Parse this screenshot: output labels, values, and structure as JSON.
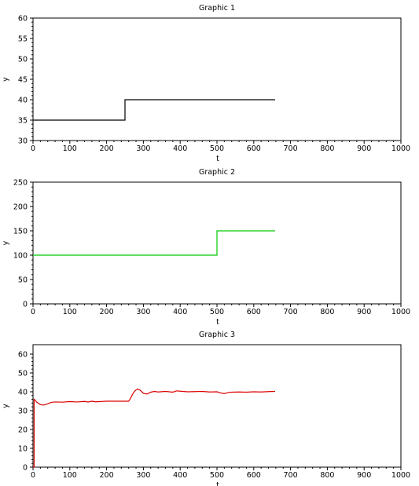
{
  "chart_data": [
    {
      "type": "line",
      "title": "Graphic 1",
      "xlabel": "t",
      "ylabel": "y",
      "xlim": [
        0,
        1000
      ],
      "ylim": [
        30,
        60
      ],
      "xticks": [
        0,
        100,
        200,
        300,
        400,
        500,
        600,
        700,
        800,
        900,
        1000
      ],
      "yticks": [
        30,
        35,
        40,
        45,
        50,
        55,
        60
      ],
      "grid": false,
      "color": "#000000",
      "series": [
        {
          "x": [
            0,
            250,
            250,
            658
          ],
          "y": [
            35,
            35,
            40,
            40
          ]
        }
      ]
    },
    {
      "type": "line",
      "title": "Graphic 2",
      "xlabel": "t",
      "ylabel": "y",
      "xlim": [
        0,
        1000
      ],
      "ylim": [
        0,
        250
      ],
      "xticks": [
        0,
        100,
        200,
        300,
        400,
        500,
        600,
        700,
        800,
        900,
        1000
      ],
      "yticks": [
        0,
        50,
        100,
        150,
        200,
        250
      ],
      "grid": false,
      "color": "#00cc00",
      "series": [
        {
          "x": [
            0,
            500,
            500,
            658
          ],
          "y": [
            100,
            100,
            150,
            150
          ]
        }
      ]
    },
    {
      "type": "line",
      "title": "Graphic 3",
      "xlabel": "t",
      "ylabel": "y",
      "xlim": [
        0,
        1000
      ],
      "ylim": [
        0,
        65
      ],
      "xticks": [
        0,
        100,
        200,
        300,
        400,
        500,
        600,
        700,
        800,
        900,
        1000
      ],
      "yticks": [
        0,
        10,
        20,
        30,
        40,
        50,
        60
      ],
      "grid": false,
      "color": "#dd0000",
      "series": [
        {
          "x": [
            0,
            3,
            3,
            6,
            10,
            15,
            20,
            25,
            30,
            40,
            50,
            60,
            80,
            100,
            120,
            140,
            150,
            160,
            170,
            180,
            200,
            220,
            240,
            260,
            265,
            270,
            275,
            280,
            285,
            290,
            295,
            300,
            310,
            320,
            330,
            340,
            360,
            380,
            390,
            400,
            420,
            440,
            460,
            480,
            500,
            510,
            520,
            530,
            540,
            560,
            580,
            600,
            620,
            640,
            658
          ],
          "y": [
            0,
            0,
            36,
            35.5,
            34.5,
            33.8,
            33.2,
            33,
            33,
            33.6,
            34.4,
            34.6,
            34.5,
            34.8,
            34.6,
            34.9,
            34.6,
            35.0,
            34.7,
            34.8,
            35,
            35,
            35,
            35,
            36.5,
            38.5,
            40,
            41,
            41.4,
            41,
            40.2,
            39.2,
            38.8,
            39.8,
            40.2,
            39.9,
            40.2,
            39.8,
            40.5,
            40.3,
            40,
            40.1,
            40.2,
            39.9,
            40,
            39.4,
            39.0,
            39.6,
            39.8,
            39.9,
            39.8,
            40,
            39.9,
            40.1,
            40.2
          ]
        }
      ]
    }
  ]
}
